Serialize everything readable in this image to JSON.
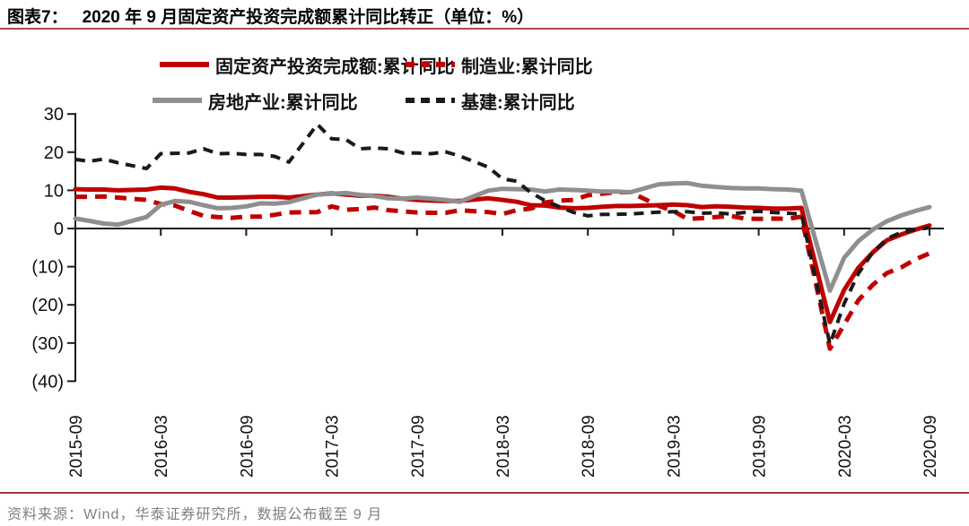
{
  "header": {
    "figure_label": "图表7：",
    "title": "2020 年 9 月固定资产投资完成额累计同比转正（单位：%）"
  },
  "footer": {
    "source": "资料来源：Wind，华泰证券研究所，数据公布截至 9 月"
  },
  "colors": {
    "series_red": "#C00000",
    "series_gray": "#8F8F8F",
    "series_black": "#1A1A1A",
    "axis": "#1A1A1A",
    "title_rule": "#B24845",
    "footer_rule": "#9C3A37",
    "footer_text": "#808080"
  },
  "chart_data": {
    "type": "line",
    "title": "2020 年 9 月固定资产投资完成额累计同比转正（单位：%）",
    "unit": "%",
    "grid": false,
    "legend_position": "top",
    "ylim": [
      -40,
      30
    ],
    "y_ticks": [
      30,
      20,
      10,
      0,
      -10,
      -20,
      -30,
      -40
    ],
    "y_tick_labels": [
      "30",
      "20",
      "10",
      "0",
      "(10)",
      "(20)",
      "(30)",
      "(40)"
    ],
    "x_tick_labels": [
      "2015-09",
      "2016-03",
      "2016-09",
      "2017-03",
      "2017-09",
      "2018-03",
      "2018-09",
      "2019-03",
      "2019-09",
      "2020-03",
      "2020-09"
    ],
    "x_months": [
      "2015-09",
      "2015-10",
      "2015-11",
      "2015-12",
      "2016-01",
      "2016-02",
      "2016-03",
      "2016-04",
      "2016-05",
      "2016-06",
      "2016-07",
      "2016-08",
      "2016-09",
      "2016-10",
      "2016-11",
      "2016-12",
      "2017-01",
      "2017-02",
      "2017-03",
      "2017-04",
      "2017-05",
      "2017-06",
      "2017-07",
      "2017-08",
      "2017-09",
      "2017-10",
      "2017-11",
      "2017-12",
      "2018-01",
      "2018-02",
      "2018-03",
      "2018-04",
      "2018-05",
      "2018-06",
      "2018-07",
      "2018-08",
      "2018-09",
      "2018-10",
      "2018-11",
      "2018-12",
      "2019-01",
      "2019-02",
      "2019-03",
      "2019-04",
      "2019-05",
      "2019-06",
      "2019-07",
      "2019-08",
      "2019-09",
      "2019-10",
      "2019-11",
      "2019-12",
      "2020-01",
      "2020-02",
      "2020-03",
      "2020-04",
      "2020-05",
      "2020-06",
      "2020-07",
      "2020-08",
      "2020-09"
    ],
    "series": [
      {
        "name": "固定资产投资完成额:累计同比",
        "color": "#C00000",
        "dash": "solid",
        "width": 5,
        "values": [
          10.3,
          10.2,
          10.2,
          10.0,
          null,
          10.2,
          10.7,
          10.5,
          9.6,
          9.0,
          8.1,
          8.1,
          8.2,
          8.3,
          8.3,
          8.1,
          null,
          8.9,
          9.2,
          8.9,
          8.6,
          8.6,
          8.3,
          7.8,
          7.5,
          7.3,
          7.2,
          7.2,
          null,
          7.9,
          7.5,
          7.0,
          6.1,
          6.0,
          5.5,
          5.3,
          5.4,
          5.7,
          5.9,
          5.9,
          null,
          6.1,
          6.3,
          6.1,
          5.6,
          5.8,
          5.7,
          5.5,
          5.4,
          5.2,
          5.2,
          5.4,
          null,
          -24.5,
          -16.1,
          -10.3,
          -6.3,
          -3.1,
          -1.6,
          -0.3,
          0.8
        ]
      },
      {
        "name": "制造业:累计同比",
        "color": "#C00000",
        "dash": "dashed",
        "width": 5,
        "values": [
          8.3,
          8.3,
          8.4,
          8.1,
          null,
          7.5,
          6.4,
          6.0,
          4.6,
          3.3,
          3.0,
          2.8,
          3.1,
          3.1,
          3.6,
          4.2,
          null,
          4.3,
          5.8,
          4.9,
          5.1,
          5.5,
          4.8,
          4.5,
          4.2,
          4.1,
          4.1,
          4.8,
          null,
          4.3,
          3.8,
          4.8,
          5.2,
          6.8,
          7.3,
          7.5,
          8.7,
          9.1,
          9.5,
          9.5,
          null,
          5.9,
          4.6,
          2.5,
          2.7,
          3.0,
          3.3,
          2.6,
          2.5,
          2.6,
          2.5,
          3.1,
          null,
          -31.5,
          -25.2,
          -18.8,
          -14.8,
          -11.7,
          -10.2,
          -8.1,
          -6.5
        ]
      },
      {
        "name": "房地产业:累计同比",
        "color": "#8F8F8F",
        "dash": "solid",
        "width": 5,
        "values": [
          2.6,
          2.0,
          1.3,
          1.0,
          null,
          3.0,
          6.2,
          7.2,
          7.0,
          6.1,
          5.3,
          5.4,
          5.8,
          6.6,
          6.5,
          6.9,
          null,
          8.9,
          9.1,
          9.3,
          8.8,
          8.5,
          7.9,
          7.8,
          8.1,
          7.8,
          7.5,
          7.0,
          null,
          9.9,
          10.4,
          10.3,
          10.2,
          9.7,
          10.2,
          10.1,
          9.9,
          9.7,
          9.7,
          9.5,
          null,
          11.6,
          11.8,
          11.9,
          11.2,
          10.9,
          10.6,
          10.5,
          10.5,
          10.3,
          10.2,
          9.9,
          null,
          -16.3,
          -7.7,
          -3.3,
          -0.3,
          1.9,
          3.4,
          4.6,
          5.6
        ]
      },
      {
        "name": "基建:累计同比",
        "color": "#1A1A1A",
        "dash": "dashed",
        "width": 4,
        "values": [
          18.1,
          17.6,
          18.2,
          17.2,
          null,
          15.7,
          19.6,
          19.7,
          19.8,
          20.9,
          19.6,
          19.7,
          19.4,
          19.4,
          18.9,
          17.4,
          null,
          27.3,
          23.5,
          23.3,
          20.9,
          21.1,
          20.9,
          19.8,
          19.8,
          19.6,
          20.1,
          19.0,
          null,
          16.1,
          13.0,
          12.4,
          9.4,
          7.3,
          5.7,
          4.2,
          3.3,
          3.7,
          3.7,
          3.8,
          null,
          4.3,
          4.4,
          4.4,
          4.0,
          4.1,
          3.8,
          4.2,
          4.5,
          4.2,
          4.0,
          3.8,
          null,
          -30.3,
          -19.7,
          -11.8,
          -6.3,
          -2.7,
          -1.0,
          -0.3,
          0.2
        ]
      }
    ]
  }
}
